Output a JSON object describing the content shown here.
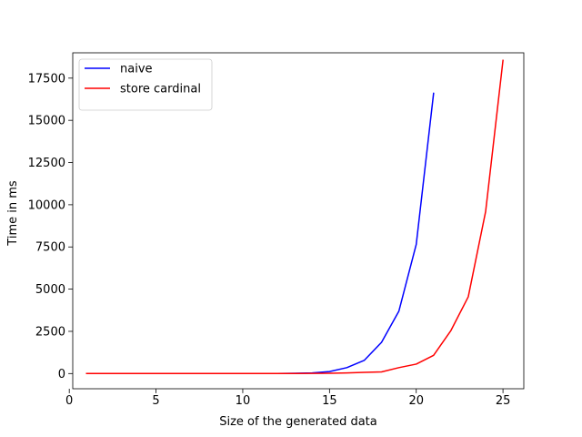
{
  "chart_data": {
    "type": "line",
    "title": "",
    "xlabel": "Size of the generated data",
    "ylabel": "Time in ms",
    "xlim": [
      0.2,
      26.2
    ],
    "ylim": [
      -900,
      19000
    ],
    "xticks": [
      0,
      5,
      10,
      15,
      20,
      25
    ],
    "xtick_labels": [
      "0",
      "5",
      "10",
      "15",
      "20",
      "25"
    ],
    "yticks": [
      0,
      2500,
      5000,
      7500,
      10000,
      12500,
      15000,
      17500
    ],
    "ytick_labels": [
      "0",
      "2500",
      "5000",
      "7500",
      "10000",
      "12500",
      "15000",
      "17500"
    ],
    "grid": false,
    "legend_position": "top-left",
    "series": [
      {
        "name": "naive",
        "color": "#0000ff",
        "x": [
          1,
          2,
          3,
          4,
          5,
          6,
          7,
          8,
          9,
          10,
          11,
          12,
          13,
          14,
          15,
          16,
          17,
          18,
          19,
          20,
          21
        ],
        "y": [
          0,
          0,
          0,
          0,
          0,
          0,
          0,
          0,
          0,
          0,
          0,
          5,
          15,
          40,
          120,
          350,
          780,
          1850,
          3700,
          7650,
          16600
        ]
      },
      {
        "name": "store cardinal",
        "color": "#ff0000",
        "x": [
          1,
          2,
          3,
          4,
          5,
          6,
          7,
          8,
          9,
          10,
          11,
          12,
          13,
          14,
          15,
          16,
          17,
          18,
          19,
          20,
          21,
          22,
          23,
          24,
          25
        ],
        "y": [
          0,
          0,
          0,
          0,
          0,
          0,
          0,
          0,
          0,
          0,
          0,
          0,
          5,
          10,
          20,
          40,
          70,
          100,
          350,
          560,
          1080,
          2550,
          4550,
          9600,
          18550
        ]
      }
    ]
  }
}
